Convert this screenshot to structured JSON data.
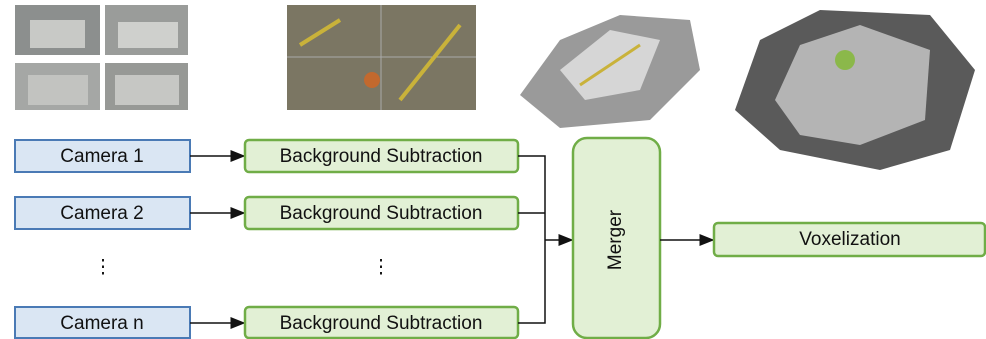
{
  "cameras": [
    "Camera 1",
    "Camera 2",
    "Camera n"
  ],
  "ellipsis": "⋮",
  "stages": [
    "Background Subtraction",
    "Background Subtraction",
    "Background Subtraction"
  ],
  "merger": "Merger",
  "output": "Voxelization"
}
